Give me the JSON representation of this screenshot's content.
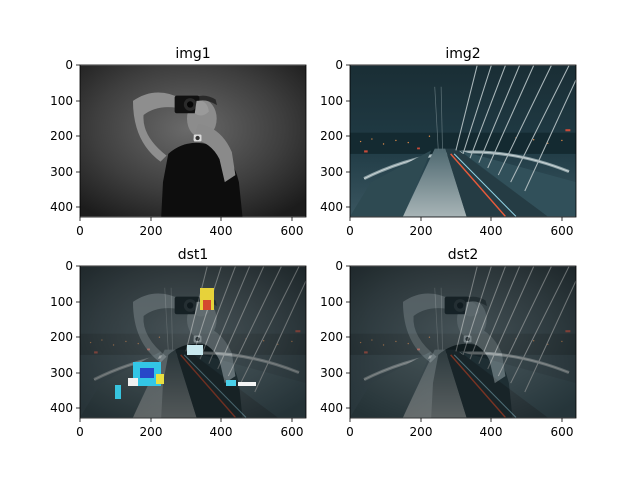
{
  "figure": {
    "panels": [
      {
        "title": "img1",
        "x_ticks": [
          "0",
          "200",
          "400",
          "600"
        ],
        "y_ticks": [
          "0",
          "100",
          "200",
          "300",
          "400"
        ],
        "content": "Grayscale portrait of a man in a black t-shirt holding a camera up to his face against a dark gradient backdrop"
      },
      {
        "title": "img2",
        "x_ticks": [
          "0",
          "200",
          "400",
          "600"
        ],
        "y_ticks": [
          "0",
          "100",
          "200",
          "300",
          "400"
        ],
        "content": "Night photo of a cable-stayed bridge walkway with city lights and dark teal sky"
      },
      {
        "title": "dst1",
        "x_ticks": [
          "0",
          "200",
          "400",
          "600"
        ],
        "y_ticks": [
          "0",
          "100",
          "200",
          "300",
          "400"
        ],
        "content": "Additive blend of img1 and img2 with saturated/overflowed colour artifacts in bright regions"
      },
      {
        "title": "dst2",
        "x_ticks": [
          "0",
          "200",
          "400",
          "600"
        ],
        "y_ticks": [
          "0",
          "100",
          "200",
          "300",
          "400"
        ],
        "content": "Weighted blend of img1 and img2 showing the photographer overlaid on the bridge scene"
      }
    ]
  },
  "colors": {
    "axes_spine": "#000000",
    "img1_bg_light": "#5a5a5a",
    "img1_bg_dark": "#1c1c1c",
    "img2_sky": "#17323c",
    "img2_city_light": "#d98a4a",
    "blend_tint": "#3d5a63"
  }
}
